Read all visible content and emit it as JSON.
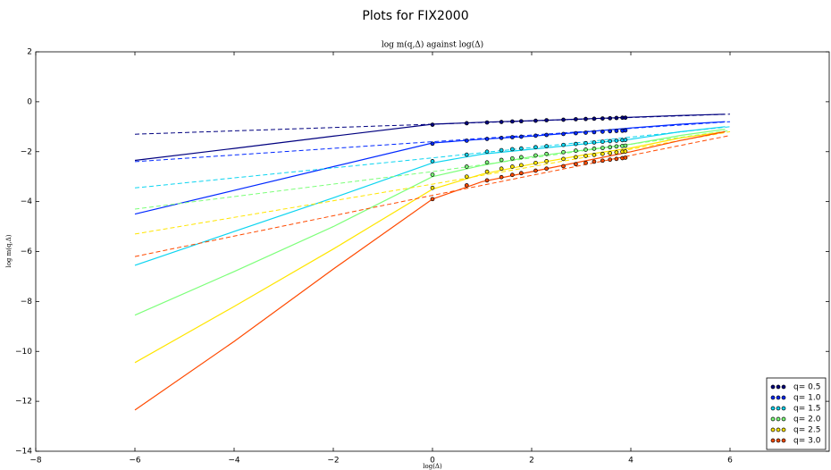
{
  "chart_data": {
    "type": "line",
    "title": "Plots for FIX2000",
    "subtitle": "log m(q,Δ) against log(Δ)",
    "x_label": "log(Δ)",
    "y_label": "log m(q,Δ)",
    "xlim": [
      -8,
      8
    ],
    "ylim": [
      -14,
      2
    ],
    "xticks": [
      {
        "value": -8,
        "label": "−8"
      },
      {
        "value": -6,
        "label": "−6"
      },
      {
        "value": -4,
        "label": "−4"
      },
      {
        "value": -2,
        "label": "−2"
      },
      0,
      2,
      4,
      6
    ],
    "yticks": [
      2,
      0,
      {
        "value": -2,
        "label": "−2"
      },
      {
        "value": -4,
        "label": "−4"
      },
      {
        "value": -6,
        "label": "−6"
      },
      {
        "value": -8,
        "label": "−8"
      },
      {
        "value": -10,
        "label": "−10"
      },
      {
        "value": -12,
        "label": "−12"
      },
      {
        "value": -14,
        "label": "−14"
      }
    ],
    "legend": "lower right",
    "x": [
      0,
      0.69,
      1.1,
      1.39,
      1.61,
      1.79,
      2.08,
      2.3,
      2.64,
      2.89,
      3.09,
      3.26,
      3.43,
      3.58,
      3.71,
      3.83,
      3.89
    ],
    "fit_x": [
      -6,
      -4,
      -2,
      0,
      1,
      2,
      3,
      4,
      5,
      5.9
    ],
    "trend_x": [
      -6,
      0,
      6
    ],
    "series": [
      {
        "name": "q= 0.5",
        "color": "#00007f",
        "values": [
          -0.92,
          -0.86,
          -0.83,
          -0.81,
          -0.79,
          -0.78,
          -0.76,
          -0.74,
          -0.72,
          -0.7,
          -0.69,
          -0.68,
          -0.67,
          -0.66,
          -0.65,
          -0.64,
          -0.64
        ],
        "fit_values": [
          -2.35,
          -1.87,
          -1.38,
          -0.9,
          -0.82,
          -0.76,
          -0.69,
          -0.62,
          -0.55,
          -0.5
        ],
        "trend_values": [
          -1.3,
          -0.9,
          -0.5
        ]
      },
      {
        "name": "q= 1.0",
        "color": "#0028ff",
        "values": [
          -1.68,
          -1.56,
          -1.49,
          -1.45,
          -1.42,
          -1.4,
          -1.36,
          -1.33,
          -1.29,
          -1.26,
          -1.24,
          -1.22,
          -1.2,
          -1.18,
          -1.17,
          -1.16,
          -1.15
        ],
        "fit_values": [
          -4.5,
          -3.55,
          -2.6,
          -1.65,
          -1.5,
          -1.38,
          -1.22,
          -1.05,
          -0.9,
          -0.8
        ],
        "trend_values": [
          -2.4,
          -1.6,
          -0.8
        ]
      },
      {
        "name": "q= 1.5",
        "color": "#0cd4f0",
        "values": [
          -2.38,
          -2.12,
          -2.0,
          -1.94,
          -1.9,
          -1.87,
          -1.82,
          -1.78,
          -1.73,
          -1.69,
          -1.66,
          -1.63,
          -1.6,
          -1.58,
          -1.56,
          -1.54,
          -1.53
        ],
        "fit_values": [
          -6.55,
          -5.2,
          -3.85,
          -2.45,
          -2.1,
          -1.9,
          -1.7,
          -1.5,
          -1.2,
          -1.0
        ],
        "trend_values": [
          -3.45,
          -2.25,
          -1.0
        ]
      },
      {
        "name": "q= 2.0",
        "color": "#7dff7a",
        "values": [
          -2.92,
          -2.6,
          -2.43,
          -2.33,
          -2.27,
          -2.22,
          -2.15,
          -2.09,
          -2.02,
          -1.96,
          -1.92,
          -1.88,
          -1.85,
          -1.82,
          -1.79,
          -1.77,
          -1.76
        ],
        "fit_values": [
          -8.55,
          -6.8,
          -5.0,
          -3.0,
          -2.55,
          -2.2,
          -1.95,
          -1.7,
          -1.35,
          -1.1
        ],
        "trend_values": [
          -4.3,
          -2.8,
          -1.15
        ]
      },
      {
        "name": "q= 2.5",
        "color": "#ffe500",
        "values": [
          -3.45,
          -3.0,
          -2.8,
          -2.68,
          -2.6,
          -2.54,
          -2.45,
          -2.38,
          -2.29,
          -2.22,
          -2.17,
          -2.13,
          -2.09,
          -2.06,
          -2.03,
          -2.0,
          -1.99
        ],
        "fit_values": [
          -10.45,
          -8.2,
          -5.9,
          -3.5,
          -2.9,
          -2.5,
          -2.15,
          -1.85,
          -1.45,
          -1.2
        ],
        "trend_values": [
          -5.3,
          -3.3,
          -1.2
        ]
      },
      {
        "name": "q= 3.0",
        "color": "#ff4a00",
        "values": [
          -3.9,
          -3.35,
          -3.15,
          -3.02,
          -2.93,
          -2.86,
          -2.76,
          -2.68,
          -2.58,
          -2.5,
          -2.45,
          -2.4,
          -2.36,
          -2.32,
          -2.29,
          -2.26,
          -2.24
        ],
        "fit_values": [
          -12.35,
          -9.6,
          -6.7,
          -3.9,
          -3.2,
          -2.8,
          -2.4,
          -2.0,
          -1.55,
          -1.2
        ],
        "trend_values": [
          -6.2,
          -3.75,
          -1.35
        ]
      }
    ]
  }
}
